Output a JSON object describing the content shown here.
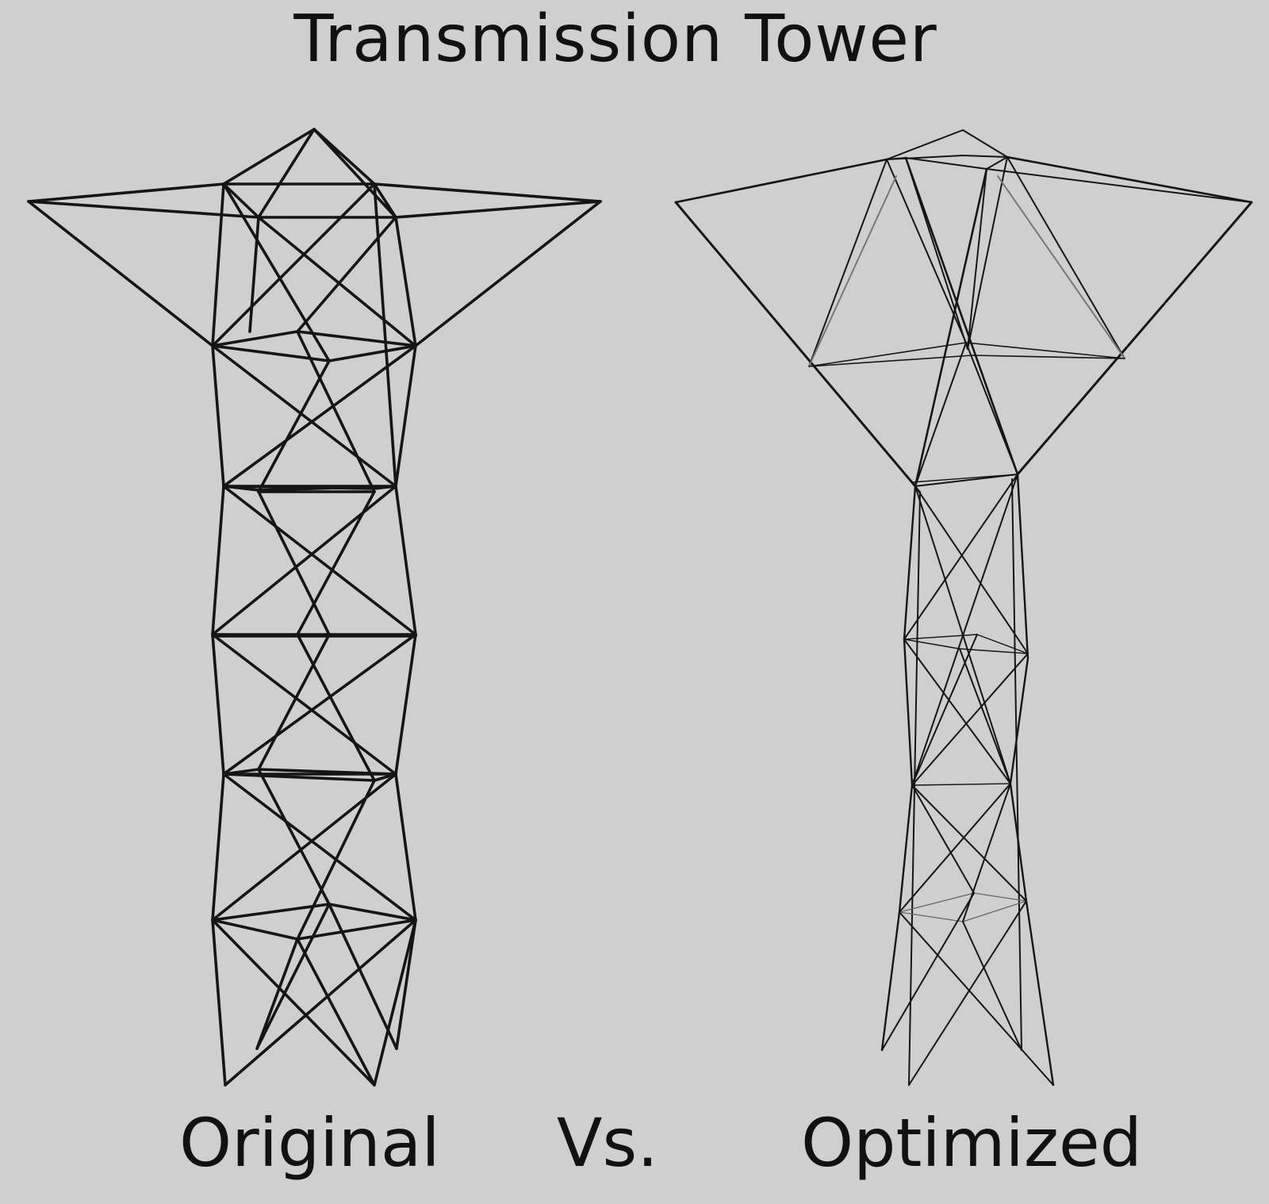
{
  "title": "Transmission Tower",
  "captions": {
    "left": "Original",
    "middle": "Vs.",
    "right": "Optimized"
  },
  "colors": {
    "background": "#cfcfcf",
    "text": "#111111",
    "member": "#151515"
  }
}
